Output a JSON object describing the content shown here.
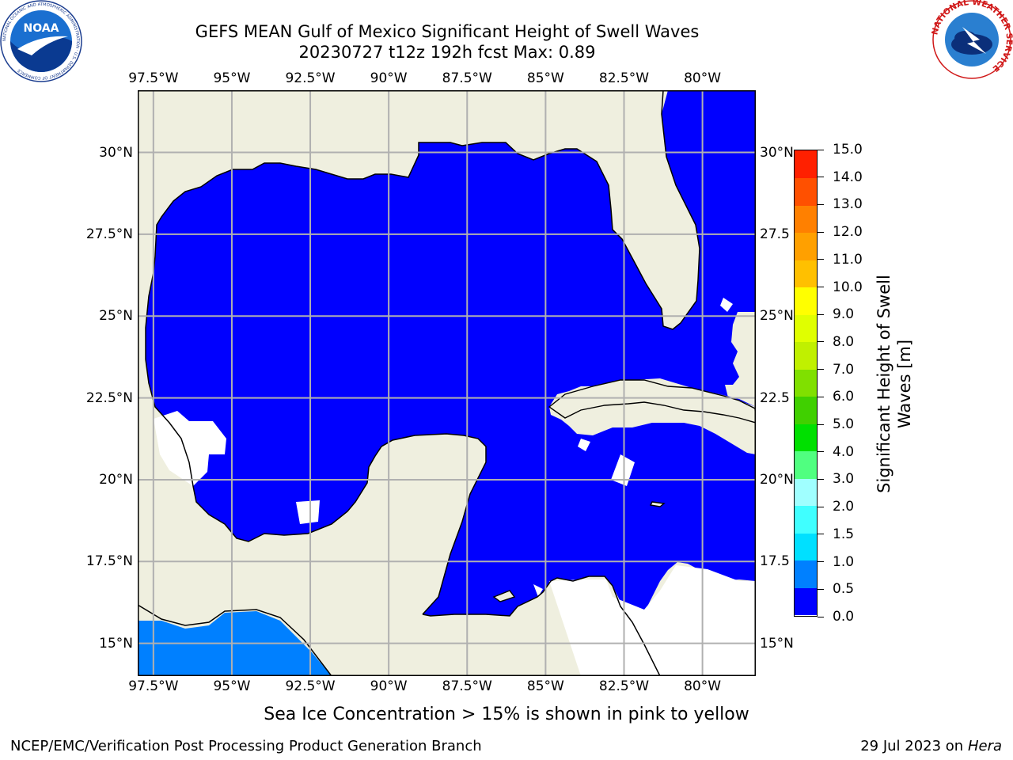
{
  "title_line1": "GEFS MEAN Gulf of Mexico Significant Height of Swell Waves",
  "title_line2": "20230727 t12z 192h fcst   Max: 0.89",
  "lon_ticks": [
    "97.5°W",
    "95°W",
    "92.5°W",
    "90°W",
    "87.5°W",
    "85°W",
    "82.5°W",
    "80°W"
  ],
  "lat_ticks_left": [
    "30°N",
    "27.5°N",
    "25°N",
    "22.5°N",
    "20°N",
    "17.5°N",
    "15°N"
  ],
  "lat_ticks_right": [
    "30°N",
    "27.5",
    "25°N",
    "22.5",
    "20°N",
    "17.5",
    "15°N"
  ],
  "map": {
    "lon_range": [
      -98,
      -78.3
    ],
    "lat_range": [
      14,
      31.9
    ],
    "land_color": "#efefdf",
    "gridline_color": "#b0b0b0"
  },
  "colorbar": {
    "label": "Significant Height of Swell Waves [m]",
    "label_line1": "Significant Height of Swell",
    "label_line2": "Waves [m]",
    "tick_labels": [
      "0.0",
      "0.5",
      "1.0",
      "1.5",
      "2.0",
      "3.0",
      "4.0",
      "5.0",
      "6.0",
      "7.0",
      "8.0",
      "9.0",
      "10.0",
      "11.0",
      "12.0",
      "13.0",
      "14.0",
      "15.0"
    ],
    "colors": [
      "#0000ff",
      "#0080ff",
      "#00e0ff",
      "#40ffff",
      "#a0ffff",
      "#50ff80",
      "#00e000",
      "#40d000",
      "#80e000",
      "#c0f000",
      "#e0ff00",
      "#ffff00",
      "#ffc000",
      "#ffa000",
      "#ff8000",
      "#ff5000",
      "#ff2000"
    ]
  },
  "footer_note": "Sea Ice Concentration > 15% is shown in pink to yellow",
  "credit": "NCEP/EMC/Verification Post Processing Product Generation Branch",
  "date_text": "29 Jul 2023 on",
  "date_machine": "Hera",
  "logos": {
    "left": "noaa-logo",
    "right": "national-weather-service-logo",
    "noaa_text": "NOAA",
    "noaa_ring_text": "NATIONAL OCEANIC AND ATMOSPHERIC ADMINISTRATION · U.S. DEPARTMENT OF COMMERCE",
    "nws_ring_text": "NATIONAL WEATHER SERVICE"
  }
}
